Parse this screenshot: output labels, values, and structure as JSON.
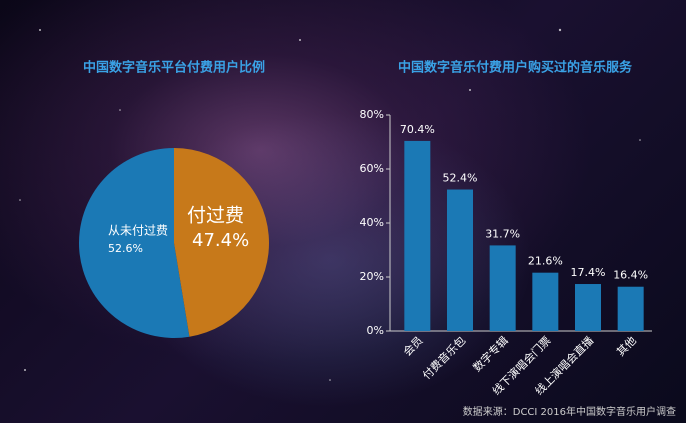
{
  "chart_data": [
    {
      "type": "pie",
      "title": "中国数字音乐平台付费用户比例",
      "categories": [
        "从未付过费",
        "付过费"
      ],
      "values": [
        52.6,
        47.4
      ],
      "value_labels": [
        "52.6%",
        "47.4%"
      ],
      "colors": [
        "#1b79b5",
        "#c7791a"
      ]
    },
    {
      "type": "bar",
      "title": "中国数字音乐付费用户购买过的音乐服务",
      "categories": [
        "会员",
        "付费音乐包",
        "数字专辑",
        "线下演唱会门票",
        "线上演唱会直播",
        "其他"
      ],
      "values": [
        70.4,
        52.4,
        31.7,
        21.6,
        17.4,
        16.4
      ],
      "value_labels": [
        "70.4%",
        "52.4%",
        "31.7%",
        "21.6%",
        "17.4%",
        "16.4%"
      ],
      "color": "#1b79b5",
      "ylim": [
        0,
        80
      ],
      "yticks": [
        {
          "value": 0,
          "label": "0%"
        },
        {
          "value": 20,
          "label": "20%"
        },
        {
          "value": 40,
          "label": "40%"
        },
        {
          "value": 60,
          "label": "60%"
        },
        {
          "value": 80,
          "label": "80%"
        }
      ]
    }
  ],
  "source": "数据来源：DCCI 2016年中国数字音乐用户调查"
}
